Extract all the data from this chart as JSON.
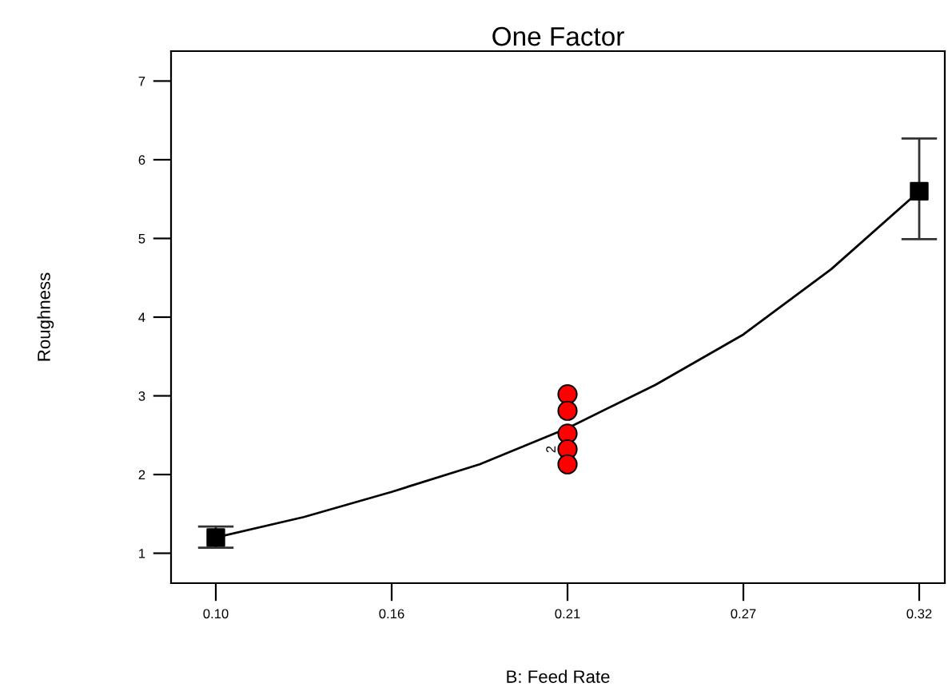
{
  "chart_data": {
    "type": "scatter",
    "title": "One Factor",
    "xlabel": "B: Feed Rate",
    "ylabel": "Roughness",
    "xlim": [
      0.086,
      0.328
    ],
    "ylim": [
      0.62,
      7.38
    ],
    "xticks": [
      {
        "value": 0.1,
        "label": "0.10"
      },
      {
        "value": 0.155,
        "label": "0.16"
      },
      {
        "value": 0.21,
        "label": "0.21"
      },
      {
        "value": 0.265,
        "label": "0.27"
      },
      {
        "value": 0.32,
        "label": "0.32"
      }
    ],
    "yticks": [
      1,
      2,
      3,
      4,
      5,
      6,
      7
    ],
    "grid": false,
    "series": [
      {
        "type": "line",
        "color": "#000000",
        "marker": "none",
        "line_style": "solid",
        "x": [
          0.1,
          0.1275,
          0.155,
          0.1825,
          0.21,
          0.2375,
          0.265,
          0.2925,
          0.32
        ],
        "values": [
          1.2,
          1.46,
          1.78,
          2.13,
          2.59,
          3.14,
          3.78,
          4.61,
          5.6
        ]
      },
      {
        "color": "#000000",
        "marker": "square",
        "x": [
          0.1,
          0.32
        ],
        "values": [
          1.2,
          5.6
        ],
        "errors": [
          [
            1.07,
            1.34
          ],
          [
            4.99,
            6.27
          ]
        ]
      },
      {
        "color": "#ff0000",
        "marker": "circle",
        "x": [
          0.21,
          0.21,
          0.21,
          0.21,
          0.21
        ],
        "values": [
          3.02,
          2.81,
          2.52,
          2.32,
          2.13
        ]
      }
    ],
    "annotations": [
      {
        "text": "2",
        "x": 0.21,
        "y": 2.32
      }
    ]
  }
}
